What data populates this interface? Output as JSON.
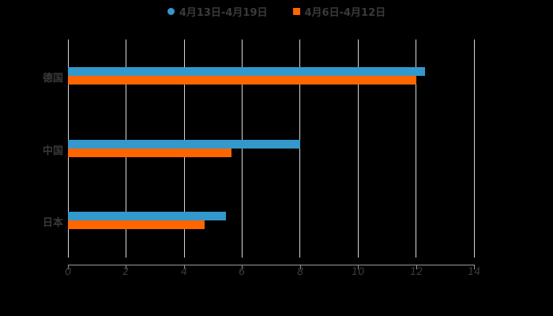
{
  "chart_data": {
    "type": "bar",
    "orientation": "horizontal",
    "title": "",
    "xlabel": "",
    "ylabel": "",
    "categories": [
      "德国",
      "中国",
      "日本"
    ],
    "series": [
      {
        "name": "4月13日-4月19日",
        "color": "#3399cc",
        "values": [
          12.3,
          8.0,
          5.45
        ]
      },
      {
        "name": "4月6日-4月12日",
        "color": "#ff6600",
        "values": [
          12.0,
          5.65,
          4.7
        ]
      }
    ],
    "xlim": [
      0,
      14
    ],
    "xticks": [
      "0",
      "2",
      "4",
      "6",
      "8",
      "10",
      "12",
      "14"
    ],
    "grid": true,
    "legend_position": "top"
  }
}
